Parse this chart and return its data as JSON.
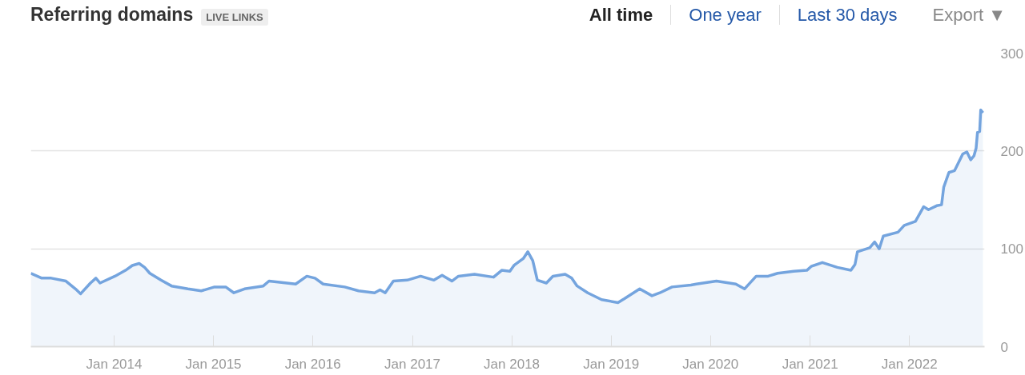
{
  "chart_data": {
    "type": "area",
    "title": "Referring domains",
    "annotations": [
      "LIVE LINKS",
      "All time",
      "One year",
      "Last 30 days",
      "Export ▼"
    ],
    "x": [
      "2013-03-01",
      "2013-04-10",
      "2013-05-15",
      "2013-07-08",
      "2013-08-12",
      "2013-08-31",
      "2013-10-06",
      "2013-10-26",
      "2013-11-10",
      "2014-01-04",
      "2014-02-12",
      "2014-03-09",
      "2014-04-03",
      "2014-04-23",
      "2014-05-12",
      "2014-06-22",
      "2014-07-31",
      "2014-09-29",
      "2014-11-17",
      "2015-01-05",
      "2015-02-15",
      "2015-03-17",
      "2015-04-25",
      "2015-07-03",
      "2015-07-24",
      "2015-10-30",
      "2015-12-10",
      "2016-01-09",
      "2016-02-08",
      "2016-04-27",
      "2016-06-17",
      "2016-08-15",
      "2016-09-04",
      "2016-09-23",
      "2016-10-23",
      "2016-12-13",
      "2017-01-31",
      "2017-03-21",
      "2017-04-20",
      "2017-05-26",
      "2017-06-19",
      "2017-08-17",
      "2017-10-26",
      "2017-11-25",
      "2017-12-25",
      "2018-01-09",
      "2018-02-12",
      "2018-03-01",
      "2018-03-19",
      "2018-04-05",
      "2018-05-08",
      "2018-06-01",
      "2018-07-16",
      "2018-08-09",
      "2018-08-29",
      "2018-10-07",
      "2018-11-27",
      "2019-01-26",
      "2019-02-19",
      "2019-04-16",
      "2019-05-31",
      "2019-06-29",
      "2019-08-13",
      "2019-10-21",
      "2019-11-10",
      "2020-01-23",
      "2020-04-03",
      "2020-05-05",
      "2020-06-17",
      "2020-07-31",
      "2020-09-04",
      "2020-11-02",
      "2020-12-20",
      "2021-01-05",
      "2021-02-15",
      "2021-04-11",
      "2021-05-31",
      "2021-06-15",
      "2021-06-24",
      "2021-08-08",
      "2021-08-26",
      "2021-09-12",
      "2021-09-27",
      "2021-11-20",
      "2021-12-13",
      "2022-01-23",
      "2022-02-22",
      "2022-03-12",
      "2022-04-11",
      "2022-04-29",
      "2022-05-07",
      "2022-05-26",
      "2022-06-16",
      "2022-07-16",
      "2022-07-31",
      "2022-08-14",
      "2022-08-26",
      "2022-09-03",
      "2022-09-08",
      "2022-09-16",
      "2022-09-20",
      "2022-09-28"
    ],
    "series": [
      {
        "color": "#74a4de",
        "values": [
          75,
          70,
          70,
          67,
          59,
          54,
          65,
          70,
          65,
          72,
          78,
          83,
          85,
          81,
          75,
          68,
          62,
          59,
          57,
          61,
          61,
          55,
          59,
          62,
          67,
          64,
          72,
          70,
          64,
          61,
          57,
          55,
          58,
          55,
          67,
          68,
          72,
          68,
          73,
          67,
          72,
          74,
          71,
          78,
          77,
          83,
          90,
          97,
          88,
          68,
          65,
          72,
          74,
          70,
          62,
          55,
          48,
          45,
          49,
          59,
          52,
          55,
          61,
          63,
          64,
          67,
          64,
          59,
          72,
          72,
          75,
          77,
          78,
          82,
          86,
          81,
          78,
          84,
          97,
          101,
          107,
          100,
          113,
          117,
          124,
          128,
          143,
          140,
          144,
          145,
          163,
          178,
          180,
          197,
          199,
          191,
          195,
          203,
          219,
          220,
          242,
          239
        ]
      }
    ],
    "xlim": [
      "2013-03-01",
      "2022-10-04"
    ],
    "xticks": [
      {
        "value": "2014-01-01",
        "label": "Jan 2014"
      },
      {
        "value": "2015-01-01",
        "label": "Jan 2015"
      },
      {
        "value": "2016-01-01",
        "label": "Jan 2016"
      },
      {
        "value": "2017-01-01",
        "label": "Jan 2017"
      },
      {
        "value": "2018-01-01",
        "label": "Jan 2018"
      },
      {
        "value": "2019-01-01",
        "label": "Jan 2019"
      },
      {
        "value": "2020-01-01",
        "label": "Jan 2020"
      },
      {
        "value": "2021-01-01",
        "label": "Jan 2021"
      },
      {
        "value": "2022-01-01",
        "label": "Jan 2022"
      }
    ],
    "ylim": [
      0,
      300
    ],
    "yticks": [
      0,
      100,
      200,
      300
    ],
    "grid": "y"
  }
}
